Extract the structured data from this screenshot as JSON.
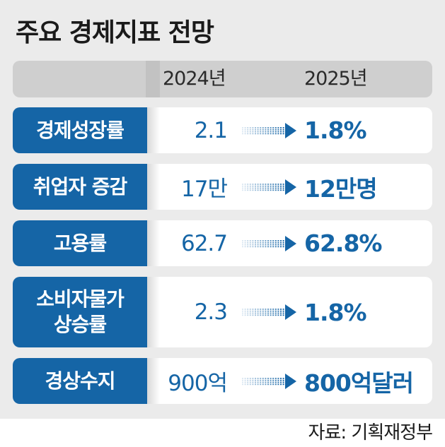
{
  "title": "주요 경제지표 전망",
  "header": {
    "year_1": "2024년",
    "year_2": "2025년"
  },
  "rows": [
    {
      "label": "경제성장률",
      "v2024": "2.1",
      "v2025": "1.8%"
    },
    {
      "label": "취업자 증감",
      "v2024": "17만",
      "v2025": "12만명"
    },
    {
      "label": "고용률",
      "v2024": "62.7",
      "v2025": "62.8%"
    },
    {
      "label": "소비자물가\n상승률",
      "v2024": "2.3",
      "v2025": "1.8%"
    },
    {
      "label": "경상수지",
      "v2024": "900억",
      "v2025": "800억달러"
    }
  ],
  "source": "자료: 기획재정부",
  "colors": {
    "accent": "#1565a6",
    "panel": "#ebebeb",
    "header": "#cfcfcf"
  },
  "icons": {
    "arrow": "dotted-right-arrow-icon"
  }
}
